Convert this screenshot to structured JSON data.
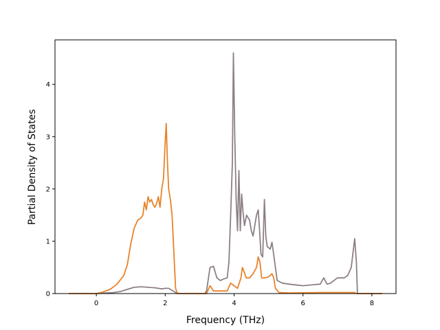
{
  "chart_data": {
    "type": "line",
    "title": "",
    "xlabel": "Frequency (THz)",
    "ylabel": "Partial Density of States",
    "xlim": [
      -1.2,
      8.7
    ],
    "ylim": [
      0,
      4.85
    ],
    "xticks": [
      0,
      2,
      4,
      6,
      8
    ],
    "xtick_labels": [
      "0",
      "2",
      "4",
      "6",
      "8"
    ],
    "yticks": [
      0,
      1,
      2,
      3,
      4
    ],
    "ytick_labels": [
      "0",
      "1",
      "2",
      "3",
      "4"
    ],
    "grid": false,
    "legend": "none",
    "series": [
      {
        "color": "#8c7f86",
        "points": [
          [
            -0.8,
            0
          ],
          [
            0.0,
            0
          ],
          [
            0.3,
            0.01
          ],
          [
            0.5,
            0.02
          ],
          [
            0.7,
            0.04
          ],
          [
            0.9,
            0.08
          ],
          [
            1.1,
            0.12
          ],
          [
            1.3,
            0.13
          ],
          [
            1.5,
            0.12
          ],
          [
            1.7,
            0.11
          ],
          [
            1.9,
            0.09
          ],
          [
            2.0,
            0.1
          ],
          [
            2.1,
            0.1
          ],
          [
            2.2,
            0.06
          ],
          [
            2.3,
            0.02
          ],
          [
            2.4,
            0.0
          ],
          [
            3.15,
            0.0
          ],
          [
            3.2,
            0.05
          ],
          [
            3.3,
            0.5
          ],
          [
            3.4,
            0.52
          ],
          [
            3.5,
            0.3
          ],
          [
            3.6,
            0.25
          ],
          [
            3.7,
            0.28
          ],
          [
            3.8,
            0.3
          ],
          [
            3.85,
            0.6
          ],
          [
            3.9,
            1.5
          ],
          [
            3.95,
            2.5
          ],
          [
            3.98,
            4.6
          ],
          [
            4.02,
            3.0
          ],
          [
            4.06,
            1.8
          ],
          [
            4.1,
            1.2
          ],
          [
            4.14,
            2.35
          ],
          [
            4.18,
            1.2
          ],
          [
            4.22,
            1.9
          ],
          [
            4.26,
            1.55
          ],
          [
            4.3,
            1.3
          ],
          [
            4.36,
            1.5
          ],
          [
            4.45,
            1.4
          ],
          [
            4.5,
            1.2
          ],
          [
            4.55,
            1.1
          ],
          [
            4.6,
            1.3
          ],
          [
            4.65,
            1.5
          ],
          [
            4.7,
            1.6
          ],
          [
            4.74,
            1.2
          ],
          [
            4.78,
            0.75
          ],
          [
            4.83,
            0.7
          ],
          [
            4.88,
            1.8
          ],
          [
            4.92,
            1.1
          ],
          [
            4.96,
            0.9
          ],
          [
            5.05,
            0.85
          ],
          [
            5.1,
            0.98
          ],
          [
            5.18,
            0.6
          ],
          [
            5.25,
            0.25
          ],
          [
            5.4,
            0.2
          ],
          [
            5.6,
            0.18
          ],
          [
            5.85,
            0.16
          ],
          [
            6.0,
            0.15
          ],
          [
            6.3,
            0.17
          ],
          [
            6.5,
            0.18
          ],
          [
            6.6,
            0.3
          ],
          [
            6.7,
            0.18
          ],
          [
            6.8,
            0.2
          ],
          [
            7.0,
            0.3
          ],
          [
            7.2,
            0.3
          ],
          [
            7.3,
            0.35
          ],
          [
            7.4,
            0.5
          ],
          [
            7.5,
            1.05
          ],
          [
            7.55,
            0.6
          ],
          [
            7.58,
            0.0
          ],
          [
            8.3,
            0.0
          ]
        ]
      },
      {
        "color": "#e8822a",
        "points": [
          [
            -0.8,
            0
          ],
          [
            0.0,
            0
          ],
          [
            0.2,
            0.03
          ],
          [
            0.4,
            0.08
          ],
          [
            0.6,
            0.18
          ],
          [
            0.8,
            0.35
          ],
          [
            0.9,
            0.55
          ],
          [
            1.0,
            0.95
          ],
          [
            1.1,
            1.25
          ],
          [
            1.2,
            1.4
          ],
          [
            1.3,
            1.45
          ],
          [
            1.35,
            1.5
          ],
          [
            1.4,
            1.75
          ],
          [
            1.45,
            1.6
          ],
          [
            1.5,
            1.85
          ],
          [
            1.55,
            1.75
          ],
          [
            1.6,
            1.8
          ],
          [
            1.65,
            1.7
          ],
          [
            1.7,
            1.65
          ],
          [
            1.75,
            1.72
          ],
          [
            1.8,
            1.85
          ],
          [
            1.85,
            1.65
          ],
          [
            1.9,
            2.0
          ],
          [
            1.95,
            2.2
          ],
          [
            2.0,
            2.9
          ],
          [
            2.03,
            3.25
          ],
          [
            2.06,
            2.6
          ],
          [
            2.1,
            2.0
          ],
          [
            2.15,
            1.8
          ],
          [
            2.2,
            1.5
          ],
          [
            2.3,
            0.1
          ],
          [
            2.35,
            0.0
          ],
          [
            3.2,
            0.0
          ],
          [
            3.3,
            0.15
          ],
          [
            3.4,
            0.05
          ],
          [
            3.6,
            0.05
          ],
          [
            3.8,
            0.05
          ],
          [
            3.9,
            0.2
          ],
          [
            4.0,
            0.15
          ],
          [
            4.1,
            0.1
          ],
          [
            4.2,
            0.3
          ],
          [
            4.24,
            0.5
          ],
          [
            4.3,
            0.4
          ],
          [
            4.35,
            0.3
          ],
          [
            4.45,
            0.3
          ],
          [
            4.55,
            0.38
          ],
          [
            4.65,
            0.5
          ],
          [
            4.7,
            0.7
          ],
          [
            4.75,
            0.6
          ],
          [
            4.8,
            0.3
          ],
          [
            4.9,
            0.3
          ],
          [
            5.0,
            0.32
          ],
          [
            5.1,
            0.38
          ],
          [
            5.15,
            0.3
          ],
          [
            5.2,
            0.1
          ],
          [
            5.3,
            0.02
          ],
          [
            5.6,
            0.01
          ],
          [
            6.5,
            0.02
          ],
          [
            7.5,
            0.02
          ],
          [
            7.55,
            0.0
          ],
          [
            8.3,
            0.0
          ]
        ]
      }
    ]
  }
}
